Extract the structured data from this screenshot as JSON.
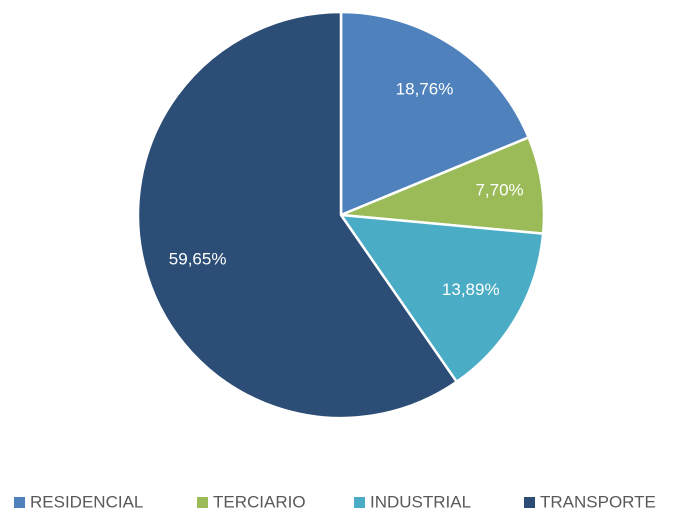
{
  "chart_data": {
    "type": "pie",
    "categories": [
      "RESIDENCIAL",
      "TERCIARIO",
      "INDUSTRIAL",
      "TRANSPORTE"
    ],
    "values": [
      18.76,
      7.7,
      13.89,
      59.65
    ],
    "value_labels": [
      "18,76%",
      "7,70%",
      "13,89%",
      "59,65%"
    ],
    "colors": [
      "#4f81bd",
      "#9bbb59",
      "#4bacc6",
      "#2c4d75"
    ],
    "legend": "bottom"
  }
}
